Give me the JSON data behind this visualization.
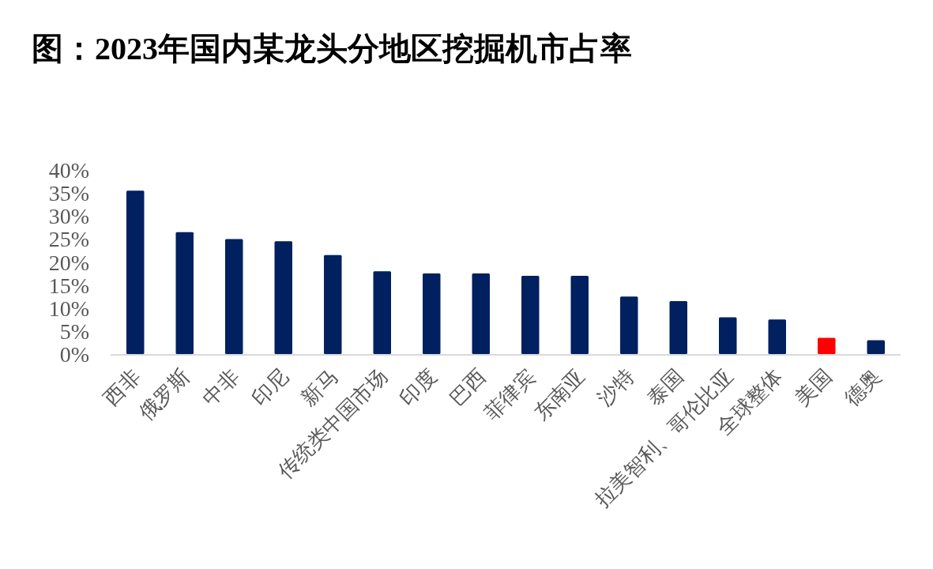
{
  "chart_data": {
    "type": "bar",
    "title": "图：2023年国内某龙头分地区挖掘机市占率",
    "categories": [
      "西非",
      "俄罗斯",
      "中非",
      "印尼",
      "新马",
      "传统类中国市场",
      "印度",
      "巴西",
      "菲律宾",
      "东南亚",
      "沙特",
      "泰国",
      "拉美智利、哥伦比亚",
      "全球整体",
      "美国",
      "德奥"
    ],
    "values": [
      35.5,
      26.5,
      25,
      24.5,
      21.5,
      18,
      17.5,
      17.5,
      17,
      17,
      12.5,
      11.5,
      8,
      7.5,
      3.5,
      3
    ],
    "colors": [
      "#002060",
      "#002060",
      "#002060",
      "#002060",
      "#002060",
      "#002060",
      "#002060",
      "#002060",
      "#002060",
      "#002060",
      "#002060",
      "#002060",
      "#002060",
      "#002060",
      "#ff0000",
      "#002060"
    ],
    "ylim": [
      0,
      40
    ],
    "yticks": [
      {
        "value": 0,
        "label": "0%"
      },
      {
        "value": 5,
        "label": "5%"
      },
      {
        "value": 10,
        "label": "10%"
      },
      {
        "value": 15,
        "label": "15%"
      },
      {
        "value": 20,
        "label": "20%"
      },
      {
        "value": 25,
        "label": "25%"
      },
      {
        "value": 30,
        "label": "30%"
      },
      {
        "value": 35,
        "label": "35%"
      },
      {
        "value": 40,
        "label": "40%"
      }
    ],
    "grid": false
  }
}
